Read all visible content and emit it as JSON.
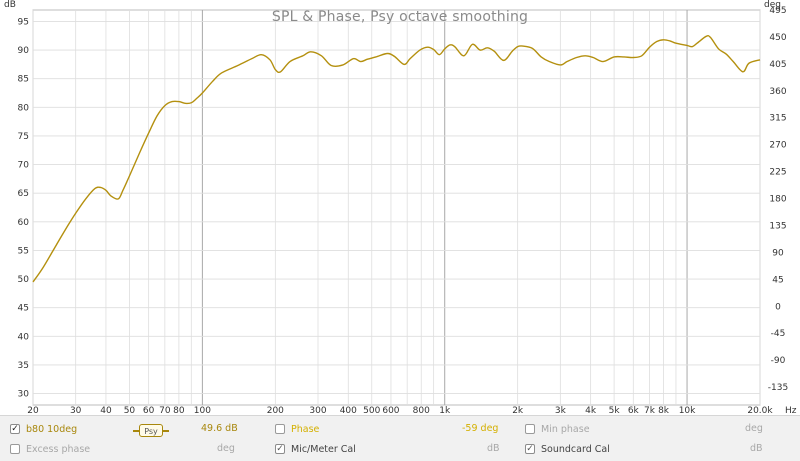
{
  "chart_data": {
    "type": "line",
    "title": "SPL & Phase, Psy octave smoothing",
    "xscale": "log",
    "xlim": [
      20,
      20000
    ],
    "ylim": [
      28,
      97
    ],
    "y2lim": [
      -165,
      495
    ],
    "left_unit": "dB",
    "right_unit": "deg",
    "x_unit": "Hz",
    "x_ticks": [
      "20",
      "30",
      "40",
      "50",
      "60",
      "70",
      "80",
      "100",
      "200",
      "300",
      "400",
      "500",
      "600",
      "800",
      "1k",
      "2k",
      "3k",
      "4k",
      "5k",
      "6k",
      "7k",
      "8k",
      "10k",
      "20.0k"
    ],
    "y_ticks_left": [
      "30",
      "35",
      "40",
      "45",
      "50",
      "55",
      "60",
      "65",
      "70",
      "75",
      "80",
      "85",
      "90",
      "95"
    ],
    "y_ticks_right": [
      "-135",
      "-90",
      "-45",
      "0",
      "45",
      "90",
      "135",
      "180",
      "225",
      "270",
      "315",
      "360",
      "405",
      "450",
      "495"
    ],
    "grid": true,
    "line_color": "#b4900f",
    "series": [
      {
        "name": "b80 10deg",
        "x": [
          20,
          22,
          25,
          28,
          30,
          33,
          36,
          38,
          40,
          42,
          45,
          47,
          50,
          55,
          60,
          65,
          70,
          75,
          80,
          85,
          90,
          95,
          100,
          110,
          120,
          140,
          160,
          175,
          190,
          200,
          210,
          230,
          260,
          280,
          310,
          340,
          380,
          420,
          450,
          480,
          520,
          580,
          620,
          680,
          720,
          790,
          850,
          900,
          950,
          1000,
          1050,
          1100,
          1200,
          1300,
          1400,
          1500,
          1600,
          1750,
          1900,
          2000,
          2100,
          2300,
          2500,
          2700,
          3000,
          3200,
          3500,
          3800,
          4100,
          4500,
          5000,
          5500,
          6000,
          6500,
          7000,
          7500,
          8000,
          8500,
          9000,
          10000,
          10500,
          11000,
          12000,
          12500,
          13500,
          14500,
          15500,
          17000,
          18000,
          20000
        ],
        "values": [
          49.5,
          52.0,
          56.0,
          59.5,
          61.5,
          64.0,
          65.8,
          66.0,
          65.5,
          64.5,
          64.0,
          65.5,
          68.0,
          72.0,
          75.5,
          78.5,
          80.3,
          81.0,
          81.0,
          80.7,
          80.8,
          81.6,
          82.5,
          84.5,
          86.0,
          87.3,
          88.5,
          89.2,
          88.3,
          86.6,
          86.2,
          88.0,
          89.0,
          89.7,
          89.0,
          87.3,
          87.4,
          88.5,
          88.0,
          88.4,
          88.8,
          89.4,
          88.9,
          87.5,
          88.5,
          90.0,
          90.5,
          90.1,
          89.2,
          90.2,
          90.9,
          90.6,
          89.0,
          91.0,
          90.0,
          90.4,
          89.8,
          88.2,
          89.8,
          90.6,
          90.7,
          90.3,
          88.8,
          88.0,
          87.4,
          88.0,
          88.7,
          89.0,
          88.7,
          88.0,
          88.8,
          88.8,
          88.7,
          89.0,
          90.5,
          91.5,
          91.8,
          91.6,
          91.2,
          90.8,
          90.6,
          91.2,
          92.4,
          92.2,
          90.2,
          89.3,
          88.0,
          86.2,
          87.7,
          88.3
        ]
      }
    ]
  },
  "legend": {
    "measurement": {
      "label": "b80 10deg",
      "checked": true,
      "smoothing_badge": "Psy",
      "value": "49.6 dB"
    },
    "phase": {
      "label": "Phase",
      "checked": false,
      "value": "-59 deg"
    },
    "min_phase": {
      "label": "Min phase",
      "checked": false,
      "unit": "deg"
    },
    "excess_phase": {
      "label": "Excess phase",
      "checked": false,
      "unit": "deg"
    },
    "mic_meter_cal": {
      "label": "Mic/Meter Cal",
      "checked": true,
      "unit": "dB"
    },
    "soundcard_cal": {
      "label": "Soundcard Cal",
      "checked": true,
      "unit": "dB"
    }
  }
}
